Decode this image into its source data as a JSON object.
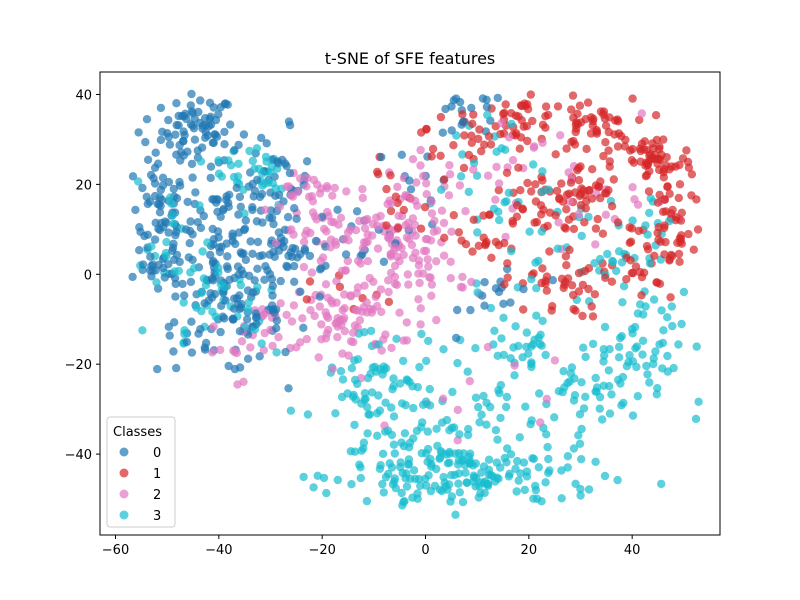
{
  "chart_data": {
    "type": "scatter",
    "title": "t-SNE of SFE features",
    "xlabel": "",
    "ylabel": "",
    "xlim": [
      -63,
      57
    ],
    "ylim": [
      -58,
      45
    ],
    "xticks": [
      -60,
      -40,
      -20,
      0,
      20,
      40
    ],
    "yticks": [
      40,
      20,
      0,
      -20,
      -40
    ],
    "xtick_labels": [
      "−60",
      "−40",
      "−20",
      "0",
      "20",
      "40"
    ],
    "ytick_labels": [
      "40",
      "20",
      "0",
      "−20",
      "−40"
    ],
    "grid": false,
    "legend": {
      "title": "Classes",
      "placement": "lower-left"
    },
    "point_alpha": 0.7,
    "series": [
      {
        "name": "0",
        "color": "#1f77b4",
        "clusters": [
          {
            "cx": -44,
            "cy": 32,
            "sx": 3.5,
            "sy": 4,
            "n": 70
          },
          {
            "cx": -52,
            "cy": 12,
            "sx": 3,
            "sy": 9,
            "n": 80
          },
          {
            "cx": -40,
            "cy": 8,
            "sx": 6,
            "sy": 10,
            "n": 90
          },
          {
            "cx": -30,
            "cy": 20,
            "sx": 4,
            "sy": 6,
            "n": 50
          },
          {
            "cx": -40,
            "cy": -10,
            "sx": 6,
            "sy": 6,
            "n": 60
          },
          {
            "cx": -25,
            "cy": 5,
            "sx": 5,
            "sy": 6,
            "n": 35
          },
          {
            "cx": -33,
            "cy": -5,
            "sx": 4,
            "sy": 8,
            "n": 40
          },
          {
            "cx": 8,
            "cy": 35,
            "sx": 4,
            "sy": 3,
            "n": 18
          },
          {
            "cx": 15,
            "cy": -4,
            "sx": 4,
            "sy": 4,
            "n": 15
          },
          {
            "cx": 0,
            "cy": 20,
            "sx": 3,
            "sy": 6,
            "n": 12
          },
          {
            "cx": -12,
            "cy": 10,
            "sx": 4,
            "sy": 4,
            "n": 12
          }
        ]
      },
      {
        "name": "1",
        "color": "#d62728",
        "clusters": [
          {
            "cx": 18,
            "cy": 34,
            "sx": 4,
            "sy": 2.5,
            "n": 40
          },
          {
            "cx": 32,
            "cy": 33,
            "sx": 4,
            "sy": 3,
            "n": 50
          },
          {
            "cx": 44,
            "cy": 25,
            "sx": 4,
            "sy": 3,
            "n": 55
          },
          {
            "cx": 48,
            "cy": 12,
            "sx": 3,
            "sy": 6,
            "n": 40
          },
          {
            "cx": 30,
            "cy": 18,
            "sx": 4,
            "sy": 3,
            "n": 35
          },
          {
            "cx": 40,
            "cy": 5,
            "sx": 5,
            "sy": 5,
            "n": 40
          },
          {
            "cx": 22,
            "cy": 15,
            "sx": 5,
            "sy": 5,
            "n": 35
          },
          {
            "cx": 25,
            "cy": -2,
            "sx": 5,
            "sy": 4,
            "n": 35
          },
          {
            "cx": 5,
            "cy": 30,
            "sx": 3,
            "sy": 4,
            "n": 20
          },
          {
            "cx": 10,
            "cy": 8,
            "sx": 5,
            "sy": 5,
            "n": 25
          },
          {
            "cx": -6,
            "cy": 18,
            "sx": 3,
            "sy": 5,
            "n": 12
          },
          {
            "cx": -14,
            "cy": -6,
            "sx": 4,
            "sy": 3,
            "n": 8
          }
        ]
      },
      {
        "name": "2",
        "color": "#e377c2",
        "clusters": [
          {
            "cx": -15,
            "cy": -10,
            "sx": 5,
            "sy": 5,
            "n": 70
          },
          {
            "cx": -8,
            "cy": 8,
            "sx": 6,
            "sy": 5,
            "n": 70
          },
          {
            "cx": -20,
            "cy": 10,
            "sx": 4,
            "sy": 6,
            "n": 45
          },
          {
            "cx": 0,
            "cy": 2,
            "sx": 4,
            "sy": 6,
            "n": 45
          },
          {
            "cx": 0,
            "cy": 18,
            "sx": 4,
            "sy": 4,
            "n": 25
          },
          {
            "cx": 20,
            "cy": 20,
            "sx": 10,
            "sy": 10,
            "n": 25
          },
          {
            "cx": -36,
            "cy": -15,
            "sx": 4,
            "sy": 4,
            "n": 18
          },
          {
            "cx": -25,
            "cy": 18,
            "sx": 3,
            "sy": 3,
            "n": 12
          },
          {
            "cx": 10,
            "cy": -30,
            "sx": 10,
            "sy": 10,
            "n": 12
          },
          {
            "cx": -28,
            "cy": -12,
            "sx": 5,
            "sy": 4,
            "n": 15
          },
          {
            "cx": 35,
            "cy": 15,
            "sx": 6,
            "sy": 8,
            "n": 12
          }
        ]
      },
      {
        "name": "3",
        "color": "#17becf",
        "clusters": [
          {
            "cx": 10,
            "cy": -45,
            "sx": 12,
            "sy": 4,
            "n": 150
          },
          {
            "cx": -5,
            "cy": -38,
            "sx": 7,
            "sy": 6,
            "n": 60
          },
          {
            "cx": -10,
            "cy": -22,
            "sx": 5,
            "sy": 6,
            "n": 50
          },
          {
            "cx": 30,
            "cy": -27,
            "sx": 8,
            "sy": 5,
            "n": 60
          },
          {
            "cx": 42,
            "cy": -14,
            "sx": 4,
            "sy": 5,
            "n": 40
          },
          {
            "cx": 18,
            "cy": -16,
            "sx": 6,
            "sy": 4,
            "n": 35
          },
          {
            "cx": 30,
            "cy": 5,
            "sx": 6,
            "sy": 6,
            "n": 35
          },
          {
            "cx": 12,
            "cy": 22,
            "sx": 6,
            "sy": 10,
            "n": 30
          },
          {
            "cx": -33,
            "cy": 23,
            "sx": 4,
            "sy": 4,
            "n": 35
          },
          {
            "cx": -40,
            "cy": -5,
            "sx": 6,
            "sy": 6,
            "n": 35
          },
          {
            "cx": -48,
            "cy": 5,
            "sx": 4,
            "sy": 8,
            "n": 20
          },
          {
            "cx": 45,
            "cy": 10,
            "sx": 4,
            "sy": 6,
            "n": 15
          },
          {
            "cx": 5,
            "cy": -30,
            "sx": 10,
            "sy": 6,
            "n": 35
          }
        ]
      }
    ]
  }
}
